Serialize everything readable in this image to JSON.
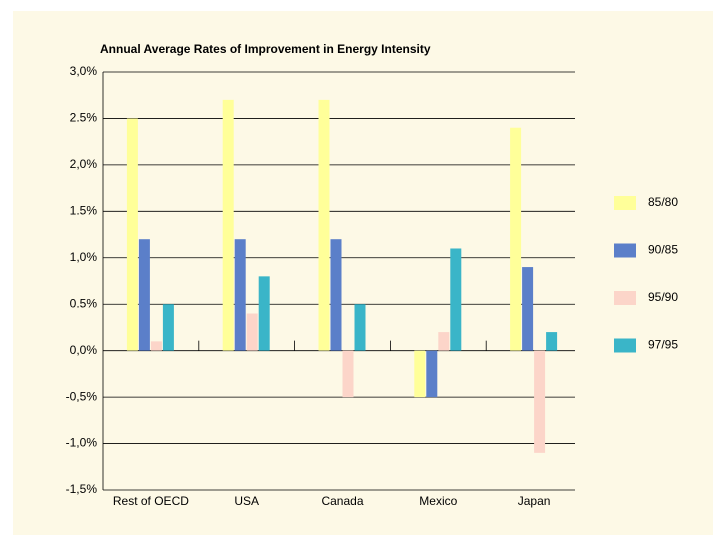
{
  "chart_data": {
    "type": "bar",
    "title": "Annual Average Rates of Improvement in Energy Intensity",
    "categories": [
      "Rest of OECD",
      "USA",
      "Canada",
      "Mexico",
      "Japan"
    ],
    "series": [
      {
        "name": "85/80",
        "color": "#ffff99",
        "values": [
          2.5,
          2.7,
          2.7,
          -0.5,
          2.4
        ]
      },
      {
        "name": "90/85",
        "color": "#5b7fc9",
        "values": [
          1.2,
          1.2,
          1.2,
          -0.5,
          0.9
        ]
      },
      {
        "name": "95/90",
        "color": "#fcd5c9",
        "values": [
          0.1,
          0.4,
          -0.5,
          0.2,
          -1.1
        ]
      },
      {
        "name": "97/95",
        "color": "#3ab5c8",
        "values": [
          0.5,
          0.8,
          0.5,
          1.1,
          0.2
        ]
      }
    ],
    "ylim": [
      -1.5,
      3.0
    ],
    "yticks": [
      {
        "value": -1.5,
        "label": "-1,5%"
      },
      {
        "value": -1.0,
        "label": "-1,0%"
      },
      {
        "value": -0.5,
        "label": "-0,5%"
      },
      {
        "value": 0.0,
        "label": "0,0%"
      },
      {
        "value": 0.5,
        "label": "0.5%"
      },
      {
        "value": 1.0,
        "label": "1,0%"
      },
      {
        "value": 1.5,
        "label": "1.5%"
      },
      {
        "value": 2.0,
        "label": "2,0%"
      },
      {
        "value": 2.5,
        "label": "2.5%"
      },
      {
        "value": 3.0,
        "label": "3,0%"
      }
    ],
    "grid": true,
    "legend": "right"
  }
}
